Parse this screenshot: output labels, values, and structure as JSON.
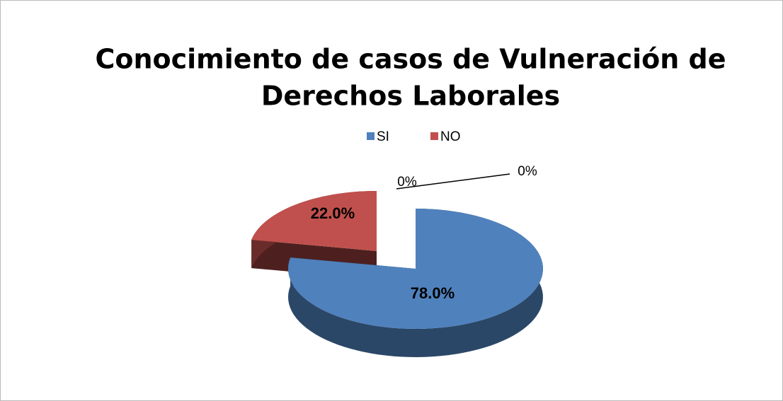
{
  "chart_data": {
    "type": "pie",
    "title": "Conocimiento de casos de Vulneración de Derechos Laborales",
    "title_lines": [
      "Conocimiento de casos de Vulneración de",
      "Derechos Laborales"
    ],
    "categories": [
      "SI",
      "NO",
      null,
      null
    ],
    "values": [
      78,
      22,
      0,
      0
    ],
    "value_labels": [
      "78.0%",
      "22.0%",
      "0%",
      "0%"
    ],
    "colors": [
      "#4f81bd",
      "#c0504d",
      "#9bbb59",
      "#8064a2"
    ],
    "legend": "top"
  }
}
